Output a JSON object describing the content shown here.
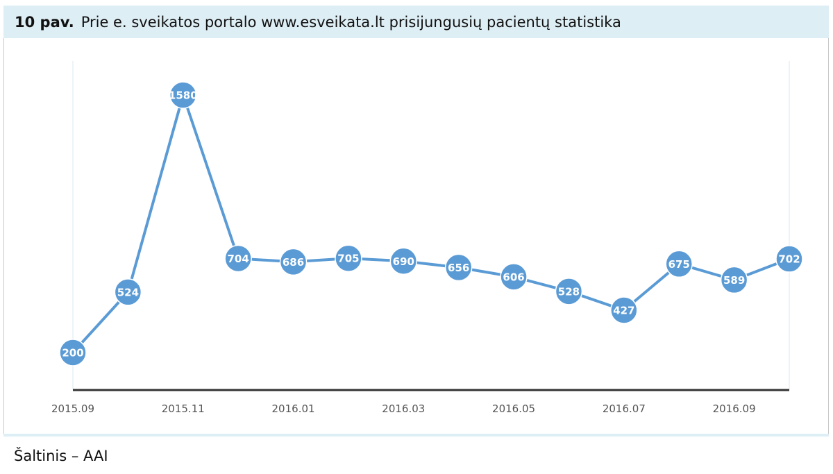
{
  "figure": {
    "number": "10 pav.",
    "title": "Prie e. sveikatos portalo www.esveikata.lt prisijungusių pacientų statistika"
  },
  "source": "Šaltinis – AAI",
  "colors": {
    "line": "#5b9bd5",
    "marker": "#5b9bd5",
    "axis": "#333333",
    "header_bg": "#deeef5"
  },
  "chart_data": {
    "type": "line",
    "title": "",
    "xlabel": "",
    "ylabel": "",
    "categories": [
      "2015.09",
      "2015.10",
      "2015.11",
      "2015.12",
      "2016.01",
      "2016.02",
      "2016.03",
      "2016.04",
      "2016.05",
      "2016.06",
      "2016.07",
      "2016.08",
      "2016.09",
      "2016.10"
    ],
    "tick_labels": [
      "2015.09",
      "2015.11",
      "2016.01",
      "2016.03",
      "2016.05",
      "2016.07",
      "2016.09"
    ],
    "series": [
      {
        "values": [
          200,
          524,
          1580,
          704,
          686,
          705,
          690,
          656,
          606,
          528,
          427,
          675,
          589,
          702
        ]
      }
    ],
    "data_labels": true,
    "grid": false,
    "legend": "none"
  }
}
